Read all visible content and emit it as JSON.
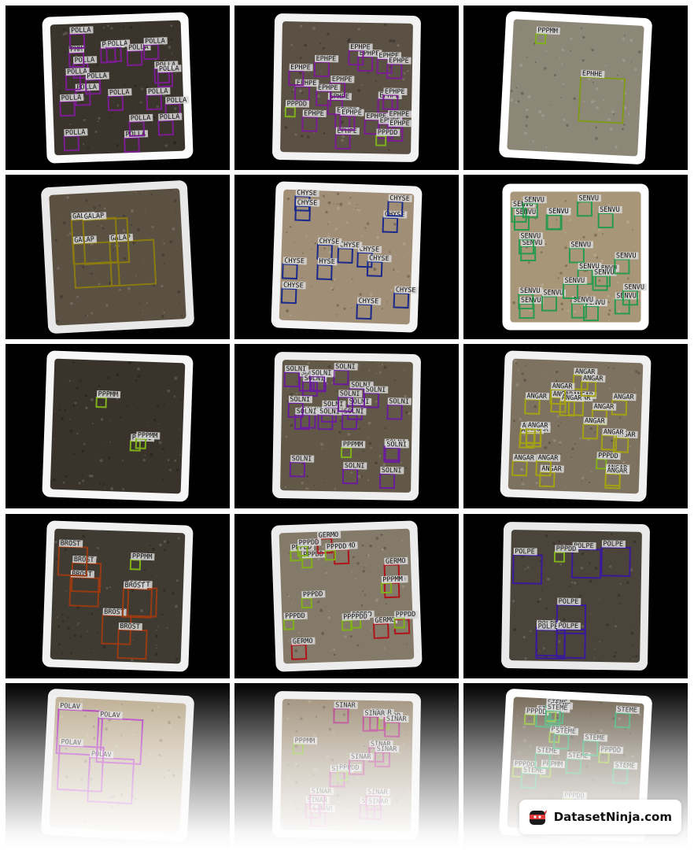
{
  "brand": {
    "name": "DatasetNinja.com"
  },
  "colors": {
    "tile_background": "#000000",
    "label_background": "#d8d8d8",
    "label_text": "#111111"
  },
  "tiles": [
    {
      "name": "tile-polla",
      "paper": "#fbfbfb",
      "soil": "#3b342d",
      "box_color": "#7a1d92",
      "labels": [
        "POLLA",
        "POLLA",
        "POLLA",
        "POLLA",
        "POLLA",
        "POLLA",
        "POLLA",
        "PMM",
        "POLLA",
        "POLLA",
        "POLLA",
        "POLLA",
        "POLLA",
        "POLLA",
        "POLLA",
        "POLLA",
        "POLLA",
        "POLLA",
        "POLLA",
        "POLLA"
      ]
    },
    {
      "name": "tile-ephpe",
      "paper": "#f2f2f2",
      "soil": "#5a5044",
      "box_color": "#7a1d92",
      "labels": [
        "EPHPE",
        "EPHPE",
        "EPHPE",
        "EPHPE",
        "EPHPE",
        "EPHPE",
        "EPHPE",
        "EPHPE",
        "EPHPE",
        "EPHPE",
        "EPHPE",
        "EPHPE",
        "EPHPE",
        "EPHPE",
        "EPHPE",
        "EPHPE",
        "EPHPE",
        "EPHPE",
        "EPHPE",
        "EPHPE",
        "PPPDD",
        "PPPDD"
      ]
    },
    {
      "name": "tile-ephhe",
      "paper": "#ffffff",
      "soil": "#8d8778",
      "box_color": "#7f9a1a",
      "labels": [
        "EPHHE",
        "PPPMM"
      ]
    },
    {
      "name": "tile-galap",
      "paper": "#e8e8e8",
      "soil": "#5b5142",
      "box_color": "#8a7a10",
      "labels": [
        "GALAP",
        "GALAP",
        "GALAP",
        "GALAP"
      ]
    },
    {
      "name": "tile-chyse",
      "paper": "#f3f3f3",
      "soil": "#a08e76",
      "box_color": "#1a2a8c",
      "labels": [
        "CHYSE",
        "CHYSE",
        "CHYSE",
        "CHYSE",
        "CHYSE",
        "CHYSE",
        "CHYSE",
        "CHYSE",
        "CHYSE",
        "CHYSE",
        "CHYSE",
        "CHYSE",
        "HYSE"
      ]
    },
    {
      "name": "tile-senvu",
      "paper": "#ffffff",
      "soil": "#a89678",
      "box_color": "#2a9a4e",
      "labels": [
        "SENVU",
        "SENVU",
        "SENVU",
        "SENVU",
        "SENVU",
        "SENVU",
        "SENVU",
        "SENVU",
        "SENVU",
        "SENVU",
        "SENVU",
        "SENVU",
        "SENVU",
        "SENVU",
        "SENVU",
        "SENVU",
        "SENVU",
        "SENVU",
        "SENVU",
        "SENVU",
        "SENVU",
        "SENVU"
      ]
    },
    {
      "name": "tile-pppmm",
      "paper": "#f6f6f6",
      "soil": "#3a332c",
      "box_color": "#7fa81a",
      "labels": [
        "PPPMM",
        "PPPDD",
        "PPPMM"
      ]
    },
    {
      "name": "tile-solni",
      "paper": "#eeeeee",
      "soil": "#625848",
      "box_color": "#6a1d9a",
      "labels": [
        "SOLNI",
        "SOLNI",
        "SOLNI",
        "SOLNI",
        "SOLNI",
        "SOLNI",
        "SOLNI",
        "SOLNI",
        "SOLNI",
        "SOLNI",
        "SOLNI",
        "SOLNI",
        "SOLNI",
        "SOLNI",
        "SOLNI",
        "SOLNI",
        "SOLNI",
        "SOLNI",
        "SOLNI",
        "SOLNI",
        "SOLNI",
        "SOLNI",
        "PPPMM"
      ]
    },
    {
      "name": "tile-angar",
      "paper": "#f0f0f0",
      "soil": "#7d7260",
      "box_color": "#a4a214",
      "labels": [
        "ANGARANGAR",
        "PPPDD",
        "ANGAR",
        "ANGAR",
        "ANGAR",
        "ANGAR",
        "ANGAR",
        "ANGAR",
        "ANGAR",
        "ANGAR",
        "ANGAR",
        "ANGAR",
        "ANGAR",
        "ANGAR",
        "ANGAR",
        "ANGAR",
        "ANGAR",
        "ANGAR",
        "ANGAR",
        "ANGAR",
        "ANGAR",
        "ANGAR"
      ]
    },
    {
      "name": "tile-brost",
      "paper": "#f0f0f0",
      "soil": "#3f3a32",
      "box_color": "#9a3a12",
      "labels": [
        "PPPMM",
        "BROST",
        "BROST",
        "BROST",
        "BROST",
        "BROST",
        "BROST",
        "BROST"
      ]
    },
    {
      "name": "tile-germo",
      "paper": "#ececec",
      "soil": "#847a6a",
      "box_color": "#b0141a",
      "labels": [
        "PPPDD",
        "PPPDD",
        "PPPDD",
        "GERMO",
        "GERMO",
        "PPPDD",
        "GERMO",
        "GERMO",
        "PPPDD",
        "GERMO",
        "PPPDD",
        "GERMO",
        "GERMO",
        "PPPDD",
        "PPPPDD",
        "PPPDD",
        "PPPMM"
      ]
    },
    {
      "name": "tile-polpe",
      "paper": "#e9e9e9",
      "soil": "#4a443a",
      "box_color": "#3a1a9a",
      "labels": [
        "POLPE",
        "POLPE",
        "POLPE",
        "PPPDD",
        "POLPE",
        "POLPE",
        "POLPE",
        "POLPE"
      ]
    },
    {
      "name": "tile-polav",
      "paper": "#ededed",
      "soil": "#b9a98b",
      "box_color": "#a822b8",
      "labels": [
        "POLAV",
        "POLAV",
        "POLAV",
        "POLAV"
      ]
    },
    {
      "name": "tile-sinar",
      "paper": "#f0f0f0",
      "soil": "#9a8a72",
      "box_color": "#a8227a",
      "labels": [
        "SINAR",
        "PPPDD",
        "SINAR",
        "SINAR",
        "SINAR",
        "SINAR",
        "SINAR",
        "SINAR",
        "SINAR",
        "PPPDD",
        "SINAR",
        "SINAR",
        "SINAR",
        "PPPMM",
        "SINAR",
        "SINAR",
        "SINAR"
      ]
    },
    {
      "name": "tile-steme",
      "paper": "#ffffff",
      "soil": "#6a5e4c",
      "box_color": "#2aa060",
      "labels": [
        "STEME",
        "PPPMM",
        "PPPDD",
        "PPPDD",
        "STEME",
        "STEME",
        "STEME",
        "STEME",
        "STEME",
        "STEME",
        "STEME",
        "STEME",
        "STEME",
        "PPPDD",
        "PPPDD",
        "STEME",
        "STEME",
        "PPPDD",
        "PPPDD",
        "STEME"
      ]
    }
  ]
}
